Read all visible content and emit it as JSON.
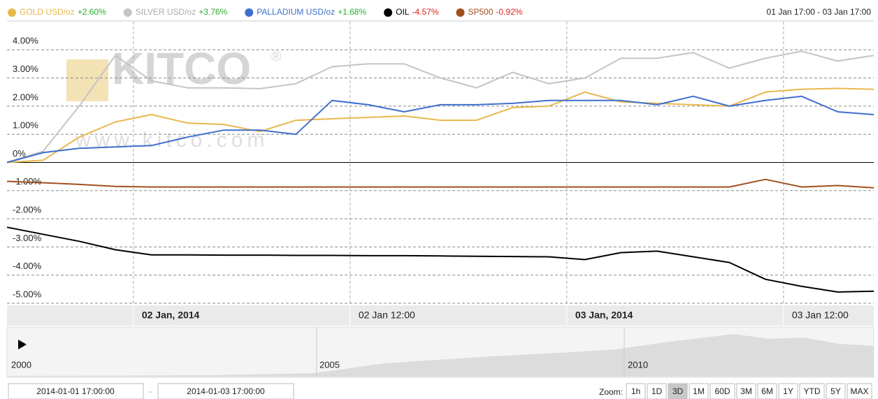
{
  "chart_data": {
    "type": "line",
    "date_range": "01 Jan 17:00 - 03 Jan 17:00",
    "x": [
      0,
      2,
      4,
      6,
      8,
      10,
      12,
      14,
      16,
      18,
      20,
      22,
      24,
      26,
      28,
      30,
      32,
      34,
      36,
      38,
      40,
      42,
      44,
      46,
      48
    ],
    "xlim": [
      0,
      48
    ],
    "xticks": [
      {
        "value": 7,
        "label": "02 Jan, 2014"
      },
      {
        "value": 19,
        "label": "02 Jan 12:00"
      },
      {
        "value": 31,
        "label": "03 Jan, 2014"
      },
      {
        "value": 43,
        "label": "03 Jan 12:00"
      }
    ],
    "ylim": [
      -5,
      5
    ],
    "yticks": [
      {
        "value": -5,
        "label": "-5.00%"
      },
      {
        "value": -4,
        "label": "-4.00%"
      },
      {
        "value": -3,
        "label": "-3.00%"
      },
      {
        "value": -2,
        "label": "-2.00%"
      },
      {
        "value": -1,
        "label": "-1.00%"
      },
      {
        "value": 0,
        "label": "0%"
      },
      {
        "value": 1,
        "label": "1.00%"
      },
      {
        "value": 2,
        "label": "2.00%"
      },
      {
        "value": 3,
        "label": "3.00%"
      },
      {
        "value": 4,
        "label": "4.00%"
      }
    ],
    "grid": true,
    "series": [
      {
        "name": "GOLD USD/oz",
        "change": 2.6,
        "change_label": "+2.60%",
        "color": "#e8b84a",
        "values": [
          0,
          0.08,
          0.9,
          1.44,
          1.7,
          1.4,
          1.35,
          1.1,
          1.5,
          1.55,
          1.6,
          1.65,
          1.5,
          1.5,
          1.95,
          2.0,
          2.5,
          2.15,
          2.1,
          2.05,
          2.0,
          2.5,
          2.6,
          2.63,
          2.6
        ]
      },
      {
        "name": "SILVER USD/oz",
        "change": 3.76,
        "change_label": "+3.76%",
        "color": "#c4c4c4",
        "values": [
          0,
          0.4,
          2.0,
          3.8,
          2.9,
          2.65,
          2.65,
          2.62,
          2.8,
          3.4,
          3.5,
          3.5,
          3.0,
          2.65,
          3.2,
          2.8,
          3.0,
          3.7,
          3.7,
          3.9,
          3.35,
          3.7,
          3.95,
          3.6,
          3.8
        ]
      },
      {
        "name": "PALLADIUM USD/oz",
        "change": 1.68,
        "change_label": "+1.68%",
        "color": "#3e6fce",
        "values": [
          0,
          0.35,
          0.5,
          0.55,
          0.6,
          0.9,
          1.15,
          1.15,
          1.0,
          2.2,
          2.05,
          1.8,
          2.05,
          2.05,
          2.1,
          2.2,
          2.2,
          2.2,
          2.05,
          2.35,
          2.0,
          2.2,
          2.35,
          1.8,
          1.7
        ]
      },
      {
        "name": "OIL",
        "change": -4.57,
        "change_label": "-4.57%",
        "color": "#000000",
        "values": [
          -2.3,
          -2.55,
          -2.8,
          -3.1,
          -3.28,
          -3.28,
          -3.29,
          -3.29,
          -3.3,
          -3.3,
          -3.31,
          -3.31,
          -3.32,
          -3.33,
          -3.34,
          -3.35,
          -3.45,
          -3.2,
          -3.15,
          -3.35,
          -3.55,
          -4.15,
          -4.4,
          -4.6,
          -4.57
        ]
      },
      {
        "name": "SP500",
        "change": -0.92,
        "change_label": "-0.92%",
        "color": "#a0501e",
        "values": [
          -0.67,
          -0.72,
          -0.78,
          -0.85,
          -0.87,
          -0.87,
          -0.87,
          -0.87,
          -0.87,
          -0.87,
          -0.87,
          -0.87,
          -0.87,
          -0.87,
          -0.87,
          -0.87,
          -0.87,
          -0.87,
          -0.87,
          -0.87,
          -0.87,
          -0.6,
          -0.87,
          -0.82,
          -0.9
        ]
      }
    ],
    "watermark": {
      "logo": "KITCO",
      "registered": "®",
      "url": "www.kitco.com"
    },
    "navigator": {
      "labels": [
        "2000",
        "2005",
        "2010"
      ]
    },
    "range_inputs": {
      "from": "2014-01-01 17:00:00",
      "separator": "-",
      "to": "2014-01-03 17:00:00"
    },
    "zoom": {
      "label": "Zoom:",
      "buttons": [
        "1h",
        "1D",
        "3D",
        "1M",
        "60D",
        "3M",
        "6M",
        "1Y",
        "YTD",
        "5Y",
        "MAX"
      ],
      "selected": "3D"
    }
  }
}
